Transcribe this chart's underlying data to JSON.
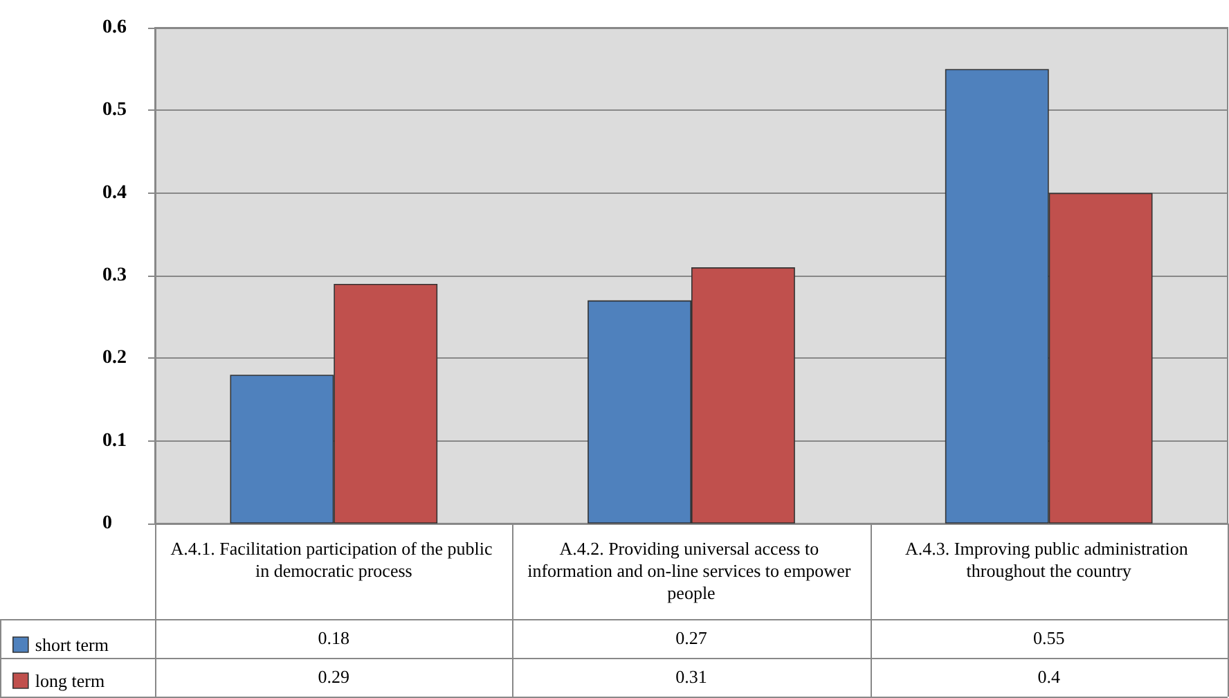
{
  "chart_data": {
    "type": "bar",
    "categories": [
      "A.4.1. Facilitation participation of the public in democratic process",
      "A.4.2. Providing universal access to information and on-line services to empower people",
      "A.4.3. Improving public administration throughout the country"
    ],
    "series": [
      {
        "name": "short term",
        "color": "#4f81bd",
        "values": [
          0.18,
          0.27,
          0.55
        ]
      },
      {
        "name": "long term",
        "color": "#c0504d",
        "values": [
          0.29,
          0.31,
          0.4
        ]
      }
    ],
    "ylim": [
      0,
      0.6
    ],
    "yticks": [
      0,
      0.1,
      0.2,
      0.3,
      0.4,
      0.5,
      0.6
    ],
    "grid": "y",
    "legend": "bottom left",
    "data_labels": true
  }
}
